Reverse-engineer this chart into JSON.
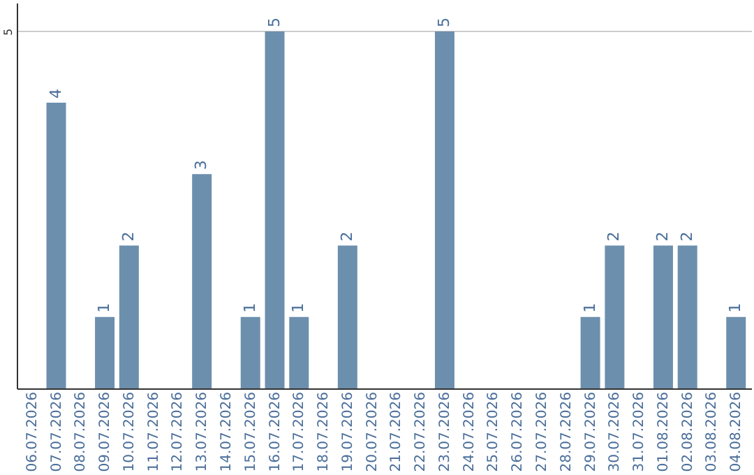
{
  "chart_data": {
    "type": "bar",
    "categories": [
      "06.07.2026",
      "07.07.2026",
      "08.07.2026",
      "09.07.2026",
      "10.07.2026",
      "11.07.2026",
      "12.07.2026",
      "13.07.2026",
      "14.07.2026",
      "15.07.2026",
      "16.07.2026",
      "17.07.2026",
      "18.07.2026",
      "19.07.2026",
      "20.07.2026",
      "21.07.2026",
      "22.07.2026",
      "23.07.2026",
      "24.07.2026",
      "25.07.2026",
      "26.07.2026",
      "27.07.2026",
      "28.07.2026",
      "29.07.2026",
      "30.07.2026",
      "31.07.2026",
      "01.08.2026",
      "02.08.2026",
      "03.08.2026",
      "04.08.2026"
    ],
    "values": [
      0,
      4,
      0,
      1,
      2,
      0,
      0,
      3,
      0,
      1,
      5,
      1,
      0,
      2,
      0,
      0,
      0,
      5,
      0,
      0,
      0,
      0,
      0,
      1,
      2,
      0,
      2,
      2,
      0,
      1
    ],
    "value_labels": [
      null,
      "4",
      null,
      "1",
      "2",
      null,
      null,
      "3",
      null,
      "1",
      "5",
      "1",
      null,
      "2",
      null,
      null,
      null,
      "5",
      null,
      null,
      null,
      null,
      null,
      "1",
      "2",
      null,
      "2",
      "2",
      null,
      "1"
    ],
    "color": "#6d8fae",
    "ylim": [
      0,
      5.4
    ],
    "yticks": [
      5
    ],
    "grid": "y"
  }
}
